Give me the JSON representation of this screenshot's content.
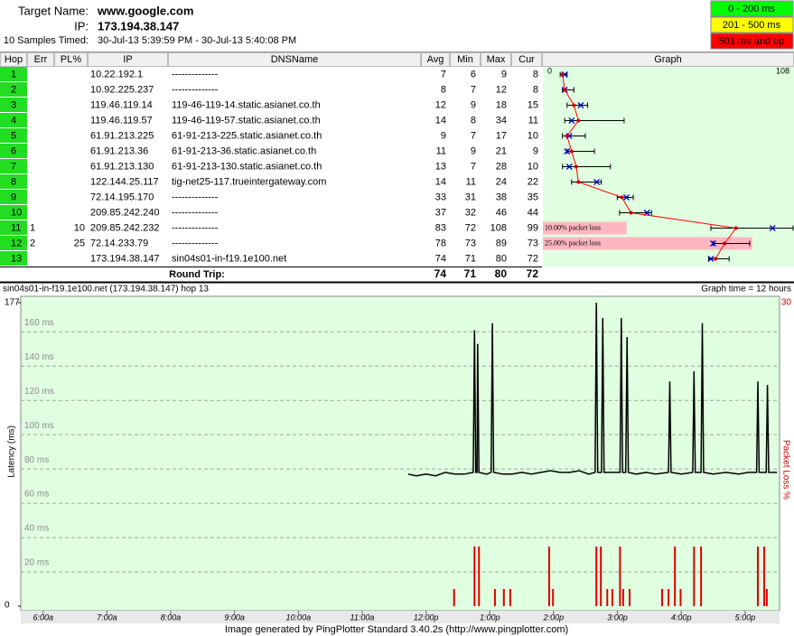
{
  "header": {
    "target_label": "Target Name:",
    "target": "www.google.com",
    "ip_label": "IP:",
    "ip": "173.194.38.147",
    "samples_label": "10 Samples Timed:",
    "time_range": "30-Jul-13 5:39:59 PM - 30-Jul-13 5:40:08 PM"
  },
  "legend": [
    {
      "label": "0 - 200 ms",
      "color": "#00ff00"
    },
    {
      "label": "201 - 500 ms",
      "color": "#ffff00"
    },
    {
      "label": "501 ms and up",
      "color": "#ff0000"
    }
  ],
  "table": {
    "columns": [
      "Hop",
      "Err",
      "PL%",
      "IP",
      "DNSName",
      "Avg",
      "Min",
      "Max",
      "Cur",
      "Graph"
    ],
    "rows": [
      {
        "hop": 1,
        "err": null,
        "pl": null,
        "ip": "10.22.192.1",
        "dns": "--------------",
        "avg": 7,
        "min": 6,
        "max": 9,
        "cur": 8
      },
      {
        "hop": 2,
        "err": null,
        "pl": null,
        "ip": "10.92.225.237",
        "dns": "--------------",
        "avg": 8,
        "min": 7,
        "max": 12,
        "cur": 8
      },
      {
        "hop": 3,
        "err": null,
        "pl": null,
        "ip": "119.46.119.14",
        "dns": "119-46-119-14.static.asianet.co.th",
        "avg": 12,
        "min": 9,
        "max": 18,
        "cur": 15
      },
      {
        "hop": 4,
        "err": null,
        "pl": null,
        "ip": "119.46.119.57",
        "dns": "119-46-119-57.static.asianet.co.th",
        "avg": 14,
        "min": 8,
        "max": 34,
        "cur": 11
      },
      {
        "hop": 5,
        "err": null,
        "pl": null,
        "ip": "61.91.213.225",
        "dns": "61-91-213-225.static.asianet.co.th",
        "avg": 9,
        "min": 7,
        "max": 17,
        "cur": 10
      },
      {
        "hop": 6,
        "err": null,
        "pl": null,
        "ip": "61.91.213.36",
        "dns": "61-91-213-36.static.asianet.co.th",
        "avg": 11,
        "min": 9,
        "max": 21,
        "cur": 9
      },
      {
        "hop": 7,
        "err": null,
        "pl": null,
        "ip": "61.91.213.130",
        "dns": "61-91-213-130.static.asianet.co.th",
        "avg": 13,
        "min": 7,
        "max": 28,
        "cur": 10
      },
      {
        "hop": 8,
        "err": null,
        "pl": null,
        "ip": "122.144.25.117",
        "dns": "tig-net25-117.trueintergateway.com",
        "avg": 14,
        "min": 11,
        "max": 24,
        "cur": 22
      },
      {
        "hop": 9,
        "err": null,
        "pl": null,
        "ip": "72.14.195.170",
        "dns": "--------------",
        "avg": 33,
        "min": 31,
        "max": 38,
        "cur": 35
      },
      {
        "hop": 10,
        "err": null,
        "pl": null,
        "ip": "209.85.242.240",
        "dns": "--------------",
        "avg": 37,
        "min": 32,
        "max": 46,
        "cur": 44
      },
      {
        "hop": 11,
        "err": 1,
        "pl": 10,
        "ip": "209.85.242.232",
        "dns": "--------------",
        "avg": 83,
        "min": 72,
        "max": 108,
        "cur": 99,
        "loss_label": "10.00% packet loss"
      },
      {
        "hop": 12,
        "err": 2,
        "pl": 25,
        "ip": "72.14.233.79",
        "dns": "--------------",
        "avg": 78,
        "min": 73,
        "max": 89,
        "cur": 73,
        "loss_label": "25.00% packet loss"
      },
      {
        "hop": 13,
        "err": null,
        "pl": null,
        "ip": "173.194.38.147",
        "dns": "sin04s01-in-f19.1e100.net",
        "avg": 74,
        "min": 71,
        "max": 80,
        "cur": 72
      }
    ],
    "round_trip": {
      "label": "Round Trip:",
      "avg": 74,
      "min": 71,
      "max": 80,
      "cur": 72
    },
    "graph": {
      "xlim": [
        0,
        108
      ]
    }
  },
  "chart_data": {
    "type": "line",
    "title": "sin04s01-in-f19.1e100.net (173.194.38.147) hop 13",
    "subtitle": "Graph time = 12 hours",
    "y_label": "Latency (ms)",
    "y2_label": "Packet Loss %",
    "footer": "Image generated by PingPlotter Standard 3.40.2s (http://www.pingplotter.com)",
    "xlim": [
      5.65,
      17.54
    ],
    "xticks": [
      {
        "value": 6,
        "label": "6:00a"
      },
      {
        "value": 7,
        "label": "7:00a"
      },
      {
        "value": 8,
        "label": "8:00a"
      },
      {
        "value": 9,
        "label": "9:00a"
      },
      {
        "value": 10,
        "label": "10:00a"
      },
      {
        "value": 11,
        "label": "11:00a"
      },
      {
        "value": 12,
        "label": "12:00p"
      },
      {
        "value": 13,
        "label": "1:00p"
      },
      {
        "value": 14,
        "label": "2:00p"
      },
      {
        "value": 15,
        "label": "3:00p"
      },
      {
        "value": 16,
        "label": "4:00p"
      },
      {
        "value": 17,
        "label": "5:00p"
      }
    ],
    "ylim": [
      0,
      177
    ],
    "yticks": [
      0,
      {
        "value": 20,
        "label": "20 ms"
      },
      {
        "value": 40,
        "label": "40 ms"
      },
      {
        "value": 60,
        "label": "60 ms"
      },
      {
        "value": 80,
        "label": "80 ms"
      },
      {
        "value": 100,
        "label": "100 ms"
      },
      {
        "value": 120,
        "label": "120 ms"
      },
      {
        "value": 140,
        "label": "140 ms"
      },
      {
        "value": 160,
        "label": "160 ms"
      },
      177
    ],
    "y2lim": [
      0,
      30
    ],
    "y2ticks": [
      30
    ],
    "series": [
      {
        "name": "Latency",
        "color": "#000000",
        "x": [
          11.72,
          11.85,
          12.0,
          12.15,
          12.3,
          12.45,
          12.6,
          12.74,
          12.76,
          12.78,
          12.8,
          12.81,
          12.83,
          12.95,
          13.02,
          13.04,
          13.06,
          13.2,
          13.35,
          13.5,
          13.65,
          13.8,
          13.95,
          14.1,
          14.25,
          14.4,
          14.55,
          14.65,
          14.67,
          14.69,
          14.75,
          14.77,
          14.79,
          14.9,
          15.04,
          15.06,
          15.08,
          15.13,
          15.15,
          15.17,
          15.3,
          15.45,
          15.6,
          15.8,
          15.82,
          15.84,
          16.0,
          16.18,
          16.2,
          16.22,
          16.31,
          16.33,
          16.35,
          16.5,
          16.7,
          16.9,
          17.05,
          17.18,
          17.2,
          17.22,
          17.33,
          17.35,
          17.37,
          17.5
        ],
        "values": [
          77,
          76,
          77,
          76,
          78,
          77,
          77,
          78,
          161,
          78,
          78,
          153,
          78,
          77,
          78,
          165,
          78,
          77,
          77,
          78,
          77,
          78,
          79,
          78,
          78,
          79,
          77,
          78,
          177,
          78,
          78,
          168,
          78,
          78,
          78,
          168,
          78,
          78,
          157,
          78,
          77,
          78,
          77,
          78,
          131,
          78,
          77,
          78,
          137,
          78,
          78,
          165,
          78,
          77,
          78,
          77,
          78,
          78,
          131,
          78,
          78,
          129,
          78,
          78
        ]
      },
      {
        "name": "Packet Loss",
        "color": "#dd0000",
        "axis": "y2",
        "x": [
          12.44,
          12.76,
          12.83,
          13.08,
          13.22,
          13.32,
          13.93,
          13.99,
          14.67,
          14.74,
          14.84,
          14.92,
          15.04,
          15.09,
          15.19,
          15.7,
          15.8,
          15.9,
          15.99,
          16.2,
          16.31,
          17.2,
          17.3,
          17.34
        ],
        "values": [
          1.7,
          5.9,
          5.9,
          1.7,
          1.7,
          1.7,
          5.9,
          1.7,
          5.9,
          5.9,
          1.7,
          1.7,
          5.9,
          1.7,
          1.7,
          1.7,
          1.7,
          5.9,
          1.7,
          5.9,
          5.9,
          5.9,
          5.9,
          1.7
        ]
      }
    ]
  }
}
